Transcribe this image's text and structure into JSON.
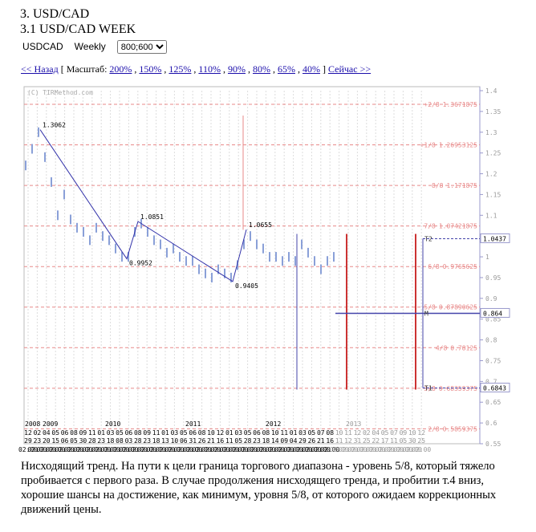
{
  "header": {
    "title": "3. USD/CAD",
    "subtitle": "3.1 USD/CAD WEEK",
    "symbol": "USDCAD",
    "period": "Weekly",
    "size_option": "800;600"
  },
  "nav": {
    "back": "<< Назад",
    "open": "[ Масштаб:",
    "scales": [
      "200%",
      "150%",
      "125%",
      "110%",
      "90%",
      "80%",
      "65%",
      "40%"
    ],
    "close": "]",
    "now": "Сейчас >>"
  },
  "chart_data": {
    "type": "candlestick",
    "watermark": "(C) TIRMethod.com",
    "ylim": [
      0.55,
      1.4
    ],
    "yticks": [
      1.4,
      1.35,
      1.3,
      1.25,
      1.2,
      1.15,
      1.1,
      1.05,
      1,
      0.95,
      0.9,
      0.85,
      0.8,
      0.75,
      0.7,
      0.65,
      0.6,
      0.55
    ],
    "prices": [
      1.22,
      1.26,
      1.3,
      1.24,
      1.18,
      1.1,
      1.15,
      1.09,
      1.07,
      1.06,
      1.04,
      1.07,
      1.05,
      1.04,
      1.02,
      1,
      1,
      1.06,
      1.08,
      1.06,
      1.04,
      1.03,
      1.01,
      1.02,
      1,
      0.99,
      0.99,
      0.97,
      0.96,
      0.95,
      0.97,
      0.96,
      0.95,
      0.98,
      1.03,
      1.05,
      1.03,
      1.02,
      1,
      1,
      0.99,
      1,
      0.99,
      1.03,
      1.01,
      0.99,
      0.97,
      0.99,
      1
    ],
    "price_color": "#8aa0d8",
    "levels": [
      {
        "label": "+2/8",
        "value": 1.3671875
      },
      {
        "label": "+1/8",
        "value": 1.26953125
      },
      {
        "label": "8/8",
        "value": 1.171875
      },
      {
        "label": "7/8",
        "value": 1.07421875
      },
      {
        "label": "6/8",
        "value": 0.9765625
      },
      {
        "label": "5/8",
        "value": 0.87890625
      },
      {
        "label": "4/8",
        "value": 0.78125
      },
      {
        "label": "3/8",
        "value": 0.68359375
      },
      {
        "label": "2/8",
        "value": 0.5859375
      }
    ],
    "level_color": "#e88a8a",
    "zigzag": [
      1.3062,
      0.9952,
      1.0851,
      0.9405,
      1.0655
    ],
    "zigzag_color": "#3333aa",
    "targets": [
      {
        "label": "T2",
        "value": 1.0437
      },
      {
        "label": "M",
        "value": 0.864
      },
      {
        "label": "T1",
        "value": 0.6843
      }
    ],
    "years": [
      "2008",
      "2009",
      "2010",
      "2011",
      "2012",
      "2013"
    ],
    "months": [
      "12",
      "02",
      "04",
      "05",
      "06",
      "08",
      "09",
      "11",
      "01",
      "03",
      "05",
      "06",
      "08",
      "09",
      "11",
      "01",
      "03",
      "05",
      "06",
      "08",
      "10",
      "12",
      "01",
      "03",
      "05",
      "06",
      "08",
      "10",
      "11",
      "01",
      "03",
      "05",
      "07",
      "08",
      "10",
      "11",
      "12",
      "02",
      "04",
      "05",
      "07",
      "09",
      "10",
      "12"
    ],
    "days": [
      "29",
      "23",
      "20",
      "15",
      "06",
      "05",
      "30",
      "28",
      "23",
      "18",
      "08",
      "03",
      "28",
      "23",
      "18",
      "13",
      "10",
      "06",
      "31",
      "26",
      "21",
      "16",
      "11",
      "05",
      "28",
      "23",
      "18",
      "14",
      "09",
      "04",
      "29",
      "26",
      "21",
      "16",
      "11",
      "12",
      "31",
      "25",
      "22",
      "17",
      "11",
      "05",
      "30",
      "25"
    ],
    "time": "02:00"
  },
  "caption": "Нисходящий тренд. На пути к цели граница торгового диапазона - уровень 5/8, который тяжело пробивается с первого раза. В случае продолжения нисходящего тренда, и пробитии т.4 вниз, хорошие шансы на достижение, как минимум, уровня 5/8, от которого ожидаем коррекционных движений цены."
}
